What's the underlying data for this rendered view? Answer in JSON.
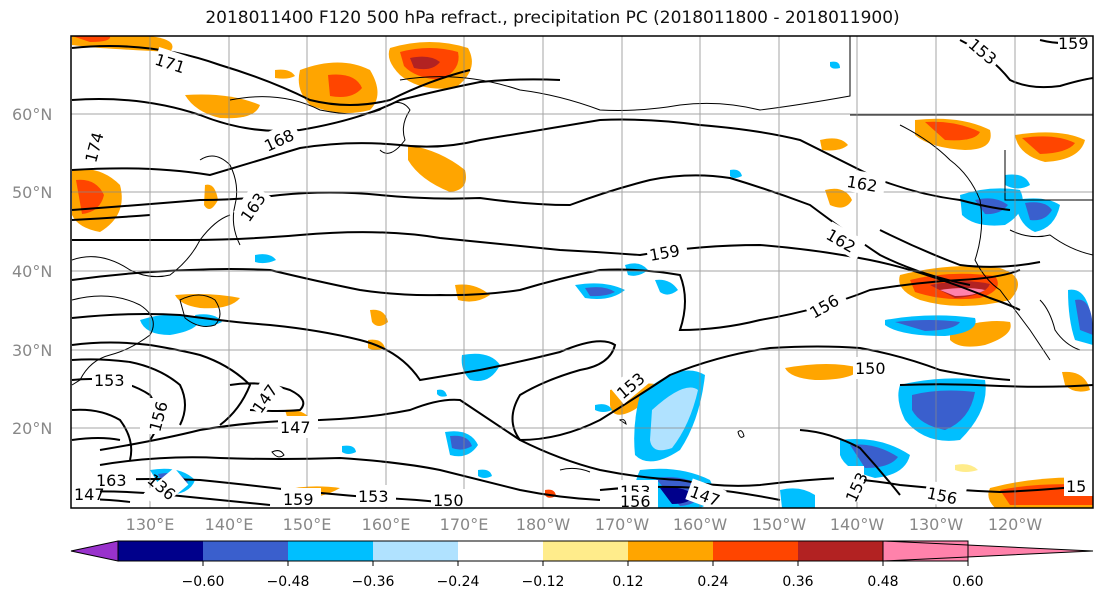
{
  "title": "2018011400 F120 500 hPa refract., precipitation PC (2018011800 - 2018011900)",
  "lat_ticks": [
    "20°N",
    "30°N",
    "40°N",
    "50°N",
    "60°N"
  ],
  "lon_ticks": [
    "130°E",
    "140°E",
    "150°E",
    "160°E",
    "170°E",
    "180°W",
    "170°W",
    "160°W",
    "150°W",
    "140°W",
    "130°W",
    "120°W"
  ],
  "contour_labels": [
    "171",
    "168",
    "174",
    "163",
    "162",
    "162",
    "159",
    "156",
    "153",
    "147",
    "147",
    "153",
    "156",
    "150",
    "153",
    "156",
    "159",
    "153",
    "150",
    "153",
    "153",
    "147",
    "156",
    "150",
    "159",
    "150",
    "15",
    "159",
    "136",
    "163",
    "147"
  ],
  "colorbar": {
    "ticks": [
      "−0.60",
      "−0.48",
      "−0.36",
      "−0.24",
      "−0.12",
      "0.12",
      "0.24",
      "0.36",
      "0.48",
      "0.60"
    ],
    "colors": [
      "#9932cc",
      "#00008b",
      "#3a5fcd",
      "#00bfff",
      "#b0e2ff",
      "#ffffff",
      "#ffec8b",
      "#ffa500",
      "#ff4500",
      "#b22222",
      "#ff82ab"
    ]
  }
}
